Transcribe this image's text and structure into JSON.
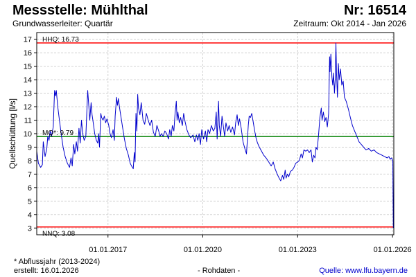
{
  "header": {
    "title": "Messstelle: Mühlthal",
    "station_no": "Nr: 16514",
    "aquifer": "Grundwasserleiter: Quartär",
    "period": "Zeitraum: Okt 2014 - Jan 2026"
  },
  "footer": {
    "note": "* Abflussjahr (2013-2024)",
    "created": "erstellt:  16.01.2026",
    "raw": "- Rohdaten -",
    "source": "Quelle:  www.lfu.bayern.de"
  },
  "colors": {
    "series": "#0000cc",
    "hhq": "#ff0000",
    "mq": "#008000",
    "nnq": "#ff0000",
    "grid": "#d0d0d0"
  },
  "chart_data": {
    "type": "line",
    "ylabel": "Quellschüttung [l/s]",
    "ylim": [
      2.5,
      17.5
    ],
    "y_ticks": [
      "3",
      "4",
      "5",
      "6",
      "7",
      "8",
      "9",
      "10",
      "11",
      "12",
      "13",
      "14",
      "15",
      "16",
      "17"
    ],
    "x_range": [
      "2014-10-01",
      "2026-01-16"
    ],
    "x_ticks": [
      {
        "date": "2017-01-01",
        "label": "01.01.2017"
      },
      {
        "date": "2020-01-01",
        "label": "01.01.2020"
      },
      {
        "date": "2023-01-01",
        "label": "01.01.2023"
      },
      {
        "date": "2026-01-01",
        "label": "01.01.2026"
      }
    ],
    "grid": true,
    "reference_lines": [
      {
        "name": "HHQ",
        "label": "HHQ: 16.73",
        "value": 16.73,
        "color": "#ff0000"
      },
      {
        "name": "MQ",
        "label": "MQ*: 9.79",
        "value": 9.79,
        "color": "#008000"
      },
      {
        "name": "NNQ",
        "label": "NNQ: 3.08",
        "value": 3.08,
        "color": "#ff0000"
      }
    ],
    "series": [
      {
        "color": "#0000cc",
        "points": [
          [
            "2014-10-01",
            8.7
          ],
          [
            "2014-10-20",
            7.8
          ],
          [
            "2014-11-15",
            7.5
          ],
          [
            "2014-12-05",
            7.7
          ],
          [
            "2014-12-15",
            9.4
          ],
          [
            "2015-01-05",
            8.3
          ],
          [
            "2015-01-25",
            8.9
          ],
          [
            "2015-02-05",
            9.8
          ],
          [
            "2015-02-20",
            9.5
          ],
          [
            "2015-03-05",
            10.2
          ],
          [
            "2015-03-20",
            9.8
          ],
          [
            "2015-04-10",
            10.5
          ],
          [
            "2015-04-25",
            13.2
          ],
          [
            "2015-05-05",
            12.8
          ],
          [
            "2015-05-15",
            13.2
          ],
          [
            "2015-06-01",
            12.0
          ],
          [
            "2015-06-20",
            11.0
          ],
          [
            "2015-07-10",
            10.0
          ],
          [
            "2015-08-01",
            9.0
          ],
          [
            "2015-08-25",
            8.3
          ],
          [
            "2015-09-20",
            7.8
          ],
          [
            "2015-10-15",
            7.5
          ],
          [
            "2015-11-01",
            8.2
          ],
          [
            "2015-11-15",
            7.6
          ],
          [
            "2015-12-01",
            9.2
          ],
          [
            "2015-12-15",
            8.5
          ],
          [
            "2016-01-01",
            9.4
          ],
          [
            "2016-01-15",
            8.7
          ],
          [
            "2016-02-01",
            10.4
          ],
          [
            "2016-02-15",
            9.3
          ],
          [
            "2016-03-01",
            11.0
          ],
          [
            "2016-03-15",
            10.0
          ],
          [
            "2016-04-01",
            9.5
          ],
          [
            "2016-04-20",
            9.8
          ],
          [
            "2016-05-05",
            12.2
          ],
          [
            "2016-05-12",
            13.2
          ],
          [
            "2016-05-20",
            12.5
          ],
          [
            "2016-06-05",
            11.0
          ],
          [
            "2016-06-20",
            12.3
          ],
          [
            "2016-07-01",
            11.4
          ],
          [
            "2016-07-15",
            10.8
          ],
          [
            "2016-08-01",
            10.0
          ],
          [
            "2016-08-20",
            9.5
          ],
          [
            "2016-09-05",
            9.3
          ],
          [
            "2016-09-15",
            10.0
          ],
          [
            "2016-09-25",
            9.0
          ],
          [
            "2016-10-10",
            11.5
          ],
          [
            "2016-10-20",
            11.2
          ],
          [
            "2016-11-05",
            11.0
          ],
          [
            "2016-11-20",
            11.3
          ],
          [
            "2016-12-05",
            10.8
          ],
          [
            "2016-12-20",
            11.1
          ],
          [
            "2017-01-10",
            10.6
          ],
          [
            "2017-01-25",
            10.0
          ],
          [
            "2017-02-10",
            9.7
          ],
          [
            "2017-03-01",
            10.3
          ],
          [
            "2017-03-15",
            9.5
          ],
          [
            "2017-03-25",
            11.3
          ],
          [
            "2017-04-10",
            12.7
          ],
          [
            "2017-04-20",
            12.1
          ],
          [
            "2017-05-01",
            12.6
          ],
          [
            "2017-05-15",
            11.9
          ],
          [
            "2017-06-01",
            11.2
          ],
          [
            "2017-06-20",
            10.4
          ],
          [
            "2017-07-10",
            9.6
          ],
          [
            "2017-08-01",
            8.9
          ],
          [
            "2017-08-25",
            8.4
          ],
          [
            "2017-09-15",
            7.8
          ],
          [
            "2017-10-01",
            7.6
          ],
          [
            "2017-10-20",
            7.4
          ],
          [
            "2017-11-01",
            8.6
          ],
          [
            "2017-11-10",
            7.9
          ],
          [
            "2017-11-20",
            11.5
          ],
          [
            "2017-12-01",
            10.2
          ],
          [
            "2017-12-10",
            12.9
          ],
          [
            "2017-12-20",
            11.9
          ],
          [
            "2018-01-05",
            11.4
          ],
          [
            "2018-01-20",
            12.3
          ],
          [
            "2018-02-10",
            11.0
          ],
          [
            "2018-03-01",
            10.7
          ],
          [
            "2018-03-20",
            11.5
          ],
          [
            "2018-04-10",
            11.0
          ],
          [
            "2018-05-01",
            10.6
          ],
          [
            "2018-05-20",
            11.0
          ],
          [
            "2018-06-10",
            10.1
          ],
          [
            "2018-07-01",
            9.8
          ],
          [
            "2018-07-20",
            10.6
          ],
          [
            "2018-08-10",
            10.2
          ],
          [
            "2018-08-25",
            9.8
          ],
          [
            "2018-09-10",
            10.0
          ],
          [
            "2018-10-01",
            9.8
          ],
          [
            "2018-10-20",
            10.2
          ],
          [
            "2018-11-10",
            10.0
          ],
          [
            "2018-12-01",
            9.6
          ],
          [
            "2018-12-15",
            10.3
          ],
          [
            "2019-01-01",
            9.8
          ],
          [
            "2019-01-15",
            10.6
          ],
          [
            "2019-02-01",
            10.2
          ],
          [
            "2019-02-15",
            11.5
          ],
          [
            "2019-03-01",
            12.4
          ],
          [
            "2019-03-10",
            11.0
          ],
          [
            "2019-03-20",
            11.6
          ],
          [
            "2019-04-05",
            10.8
          ],
          [
            "2019-04-20",
            11.2
          ],
          [
            "2019-05-10",
            10.6
          ],
          [
            "2019-05-25",
            11.5
          ],
          [
            "2019-06-10",
            10.9
          ],
          [
            "2019-07-01",
            10.3
          ],
          [
            "2019-07-25",
            9.9
          ],
          [
            "2019-08-15",
            9.7
          ],
          [
            "2019-09-10",
            9.9
          ],
          [
            "2019-10-01",
            9.4
          ],
          [
            "2019-10-20",
            9.9
          ],
          [
            "2019-11-05",
            9.5
          ],
          [
            "2019-11-20",
            10.0
          ],
          [
            "2019-12-05",
            9.2
          ],
          [
            "2019-12-20",
            10.3
          ],
          [
            "2020-01-10",
            9.6
          ],
          [
            "2020-02-01",
            10.2
          ],
          [
            "2020-02-15",
            9.4
          ],
          [
            "2020-03-01",
            10.3
          ],
          [
            "2020-03-20",
            10.0
          ],
          [
            "2020-04-10",
            10.6
          ],
          [
            "2020-05-01",
            10.2
          ],
          [
            "2020-05-20",
            10.4
          ],
          [
            "2020-06-05",
            11.6
          ],
          [
            "2020-06-15",
            9.6
          ],
          [
            "2020-07-01",
            12.4
          ],
          [
            "2020-07-10",
            10.6
          ],
          [
            "2020-07-25",
            9.8
          ],
          [
            "2020-08-10",
            11.3
          ],
          [
            "2020-08-25",
            10.6
          ],
          [
            "2020-09-10",
            9.8
          ],
          [
            "2020-09-25",
            10.8
          ],
          [
            "2020-10-15",
            10.2
          ],
          [
            "2020-11-01",
            10.6
          ],
          [
            "2020-11-20",
            10.1
          ],
          [
            "2020-12-10",
            10.5
          ],
          [
            "2021-01-01",
            9.9
          ],
          [
            "2021-01-15",
            10.8
          ],
          [
            "2021-02-01",
            11.4
          ],
          [
            "2021-02-15",
            10.6
          ],
          [
            "2021-03-01",
            11.1
          ],
          [
            "2021-03-20",
            10.4
          ],
          [
            "2021-04-10",
            9.4
          ],
          [
            "2021-05-01",
            8.9
          ],
          [
            "2021-05-20",
            8.5
          ],
          [
            "2021-06-10",
            10.6
          ],
          [
            "2021-06-20",
            11.3
          ],
          [
            "2021-07-05",
            11.2
          ],
          [
            "2021-07-20",
            11.5
          ],
          [
            "2021-08-05",
            10.9
          ],
          [
            "2021-08-20",
            10.3
          ],
          [
            "2021-09-10",
            9.6
          ],
          [
            "2021-09-25",
            9.3
          ],
          [
            "2021-10-15",
            9.0
          ],
          [
            "2021-11-10",
            8.7
          ],
          [
            "2021-12-05",
            8.4
          ],
          [
            "2022-01-01",
            8.2
          ],
          [
            "2022-02-01",
            7.9
          ],
          [
            "2022-03-01",
            7.6
          ],
          [
            "2022-03-25",
            7.9
          ],
          [
            "2022-04-15",
            7.4
          ],
          [
            "2022-05-10",
            7.0
          ],
          [
            "2022-06-01",
            6.7
          ],
          [
            "2022-06-20",
            6.5
          ],
          [
            "2022-07-10",
            6.9
          ],
          [
            "2022-07-25",
            6.6
          ],
          [
            "2022-08-10",
            7.3
          ],
          [
            "2022-08-20",
            6.7
          ],
          [
            "2022-09-05",
            7.0
          ],
          [
            "2022-09-20",
            6.8
          ],
          [
            "2022-10-10",
            7.2
          ],
          [
            "2022-11-01",
            7.3
          ],
          [
            "2022-11-20",
            7.5
          ],
          [
            "2022-12-10",
            7.8
          ],
          [
            "2023-01-01",
            7.9
          ],
          [
            "2023-01-20",
            8.0
          ],
          [
            "2023-02-10",
            8.5
          ],
          [
            "2023-02-25",
            8.2
          ],
          [
            "2023-03-15",
            8.8
          ],
          [
            "2023-04-05",
            8.7
          ],
          [
            "2023-04-25",
            8.8
          ],
          [
            "2023-05-15",
            8.6
          ],
          [
            "2023-06-05",
            8.8
          ],
          [
            "2023-06-20",
            7.9
          ],
          [
            "2023-07-05",
            8.4
          ],
          [
            "2023-07-20",
            8.2
          ],
          [
            "2023-08-01",
            9.0
          ],
          [
            "2023-08-15",
            8.8
          ],
          [
            "2023-09-01",
            10.0
          ],
          [
            "2023-09-15",
            11.2
          ],
          [
            "2023-10-01",
            11.9
          ],
          [
            "2023-10-10",
            11.0
          ],
          [
            "2023-10-25",
            11.6
          ],
          [
            "2023-11-10",
            10.9
          ],
          [
            "2023-11-25",
            11.2
          ],
          [
            "2023-12-10",
            10.5
          ],
          [
            "2023-12-25",
            11.5
          ],
          [
            "2024-01-05",
            15.7
          ],
          [
            "2024-01-10",
            14.6
          ],
          [
            "2024-01-20",
            15.9
          ],
          [
            "2024-02-01",
            14.2
          ],
          [
            "2024-02-10",
            13.6
          ],
          [
            "2024-02-20",
            14.5
          ],
          [
            "2024-03-01",
            13.0
          ],
          [
            "2024-03-10",
            14.0
          ],
          [
            "2024-03-18",
            16.73
          ],
          [
            "2024-03-25",
            14.5
          ],
          [
            "2024-04-05",
            12.7
          ],
          [
            "2024-04-15",
            15.2
          ],
          [
            "2024-04-25",
            14.0
          ],
          [
            "2024-05-10",
            14.8
          ],
          [
            "2024-05-25",
            13.6
          ],
          [
            "2024-06-10",
            13.9
          ],
          [
            "2024-06-25",
            12.7
          ],
          [
            "2024-07-15",
            12.4
          ],
          [
            "2024-08-10",
            11.8
          ],
          [
            "2024-09-01",
            11.2
          ],
          [
            "2024-09-25",
            10.6
          ],
          [
            "2024-10-20",
            10.2
          ],
          [
            "2024-11-15",
            9.8
          ],
          [
            "2024-12-10",
            9.4
          ],
          [
            "2025-01-05",
            9.2
          ],
          [
            "2025-02-01",
            9.0
          ],
          [
            "2025-03-01",
            8.8
          ],
          [
            "2025-04-01",
            8.9
          ],
          [
            "2025-05-01",
            8.7
          ],
          [
            "2025-06-01",
            8.8
          ],
          [
            "2025-07-01",
            8.6
          ],
          [
            "2025-08-01",
            8.5
          ],
          [
            "2025-09-01",
            8.4
          ],
          [
            "2025-10-01",
            8.3
          ],
          [
            "2025-11-01",
            8.2
          ],
          [
            "2025-11-20",
            8.3
          ],
          [
            "2025-12-05",
            8.1
          ],
          [
            "2025-12-20",
            8.2
          ],
          [
            "2026-01-05",
            8.0
          ],
          [
            "2026-01-10",
            3.0
          ]
        ]
      }
    ]
  }
}
